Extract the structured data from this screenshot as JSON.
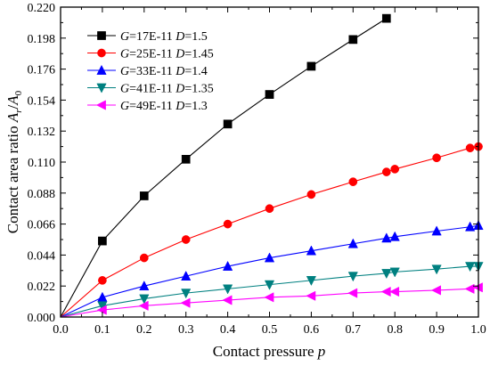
{
  "chart_data": {
    "type": "line",
    "xlabel": "Contact pressure",
    "xlabel_var": "p",
    "ylabel_a": "Contact area ratio ",
    "ylabel_r": "A",
    "ylabel_rsub": "r",
    "ylabel_slash": "/",
    "ylabel_0": "A",
    "ylabel_0sub": "0",
    "xlim": [
      0.0,
      1.0
    ],
    "ylim": [
      0.0,
      0.22
    ],
    "xticks": [
      0.0,
      0.1,
      0.2,
      0.3,
      0.4,
      0.5,
      0.6,
      0.7,
      0.8,
      0.9,
      1.0
    ],
    "xtick_labels": [
      "0.0",
      "0.1",
      "0.2",
      "0.3",
      "0.4",
      "0.5",
      "0.6",
      "0.7",
      "0.8",
      "0.9",
      "1.0"
    ],
    "yticks": [
      0.0,
      0.022,
      0.044,
      0.066,
      0.088,
      0.11,
      0.132,
      0.154,
      0.176,
      0.198,
      0.22
    ],
    "ytick_labels": [
      "0.000",
      "0.022",
      "0.044",
      "0.066",
      "0.088",
      "0.110",
      "0.132",
      "0.154",
      "0.176",
      "0.198",
      "0.220"
    ],
    "legend_position": "top-left",
    "series": [
      {
        "g_label": "G",
        "g_value": "=17E-11",
        "d_label": "D",
        "d_value": "=1.5",
        "marker": "square",
        "color": "#000000",
        "points": [
          [
            0.1,
            0.054
          ],
          [
            0.2,
            0.086
          ],
          [
            0.3,
            0.112
          ],
          [
            0.4,
            0.137
          ],
          [
            0.5,
            0.158
          ],
          [
            0.6,
            0.178
          ],
          [
            0.7,
            0.197
          ],
          [
            0.78,
            0.212
          ]
        ]
      },
      {
        "g_label": "G",
        "g_value": "=25E-11",
        "d_label": "D",
        "d_value": "=1.45",
        "marker": "circle",
        "color": "#ff0000",
        "points": [
          [
            0.1,
            0.026
          ],
          [
            0.2,
            0.042
          ],
          [
            0.3,
            0.055
          ],
          [
            0.4,
            0.066
          ],
          [
            0.5,
            0.077
          ],
          [
            0.6,
            0.087
          ],
          [
            0.7,
            0.096
          ],
          [
            0.78,
            0.103
          ],
          [
            0.8,
            0.105
          ],
          [
            0.9,
            0.113
          ],
          [
            0.98,
            0.12
          ],
          [
            1.0,
            0.121
          ]
        ]
      },
      {
        "g_label": "G",
        "g_value": "=33E-11",
        "d_label": "D",
        "d_value": "=1.4",
        "marker": "triangle-up",
        "color": "#0000ff",
        "points": [
          [
            0.1,
            0.014
          ],
          [
            0.2,
            0.022
          ],
          [
            0.3,
            0.029
          ],
          [
            0.4,
            0.036
          ],
          [
            0.5,
            0.042
          ],
          [
            0.6,
            0.047
          ],
          [
            0.7,
            0.052
          ],
          [
            0.78,
            0.056
          ],
          [
            0.8,
            0.057
          ],
          [
            0.9,
            0.061
          ],
          [
            0.98,
            0.064
          ],
          [
            1.0,
            0.065
          ]
        ]
      },
      {
        "g_label": "G",
        "g_value": "=41E-11",
        "d_label": "D",
        "d_value": "=1.35",
        "marker": "triangle-down",
        "color": "#008080",
        "points": [
          [
            0.1,
            0.008
          ],
          [
            0.2,
            0.013
          ],
          [
            0.3,
            0.017
          ],
          [
            0.4,
            0.02
          ],
          [
            0.5,
            0.023
          ],
          [
            0.6,
            0.026
          ],
          [
            0.7,
            0.029
          ],
          [
            0.78,
            0.031
          ],
          [
            0.8,
            0.032
          ],
          [
            0.9,
            0.034
          ],
          [
            0.98,
            0.036
          ],
          [
            1.0,
            0.036
          ]
        ]
      },
      {
        "g_label": "G",
        "g_value": "=49E-11",
        "d_label": "D",
        "d_value": "=1.3",
        "marker": "triangle-left",
        "color": "#ff00ff",
        "points": [
          [
            0.1,
            0.005
          ],
          [
            0.2,
            0.008
          ],
          [
            0.3,
            0.01
          ],
          [
            0.4,
            0.012
          ],
          [
            0.5,
            0.014
          ],
          [
            0.6,
            0.015
          ],
          [
            0.7,
            0.017
          ],
          [
            0.78,
            0.018
          ],
          [
            0.8,
            0.018
          ],
          [
            0.9,
            0.019
          ],
          [
            0.98,
            0.02
          ],
          [
            1.0,
            0.021
          ]
        ]
      }
    ]
  }
}
